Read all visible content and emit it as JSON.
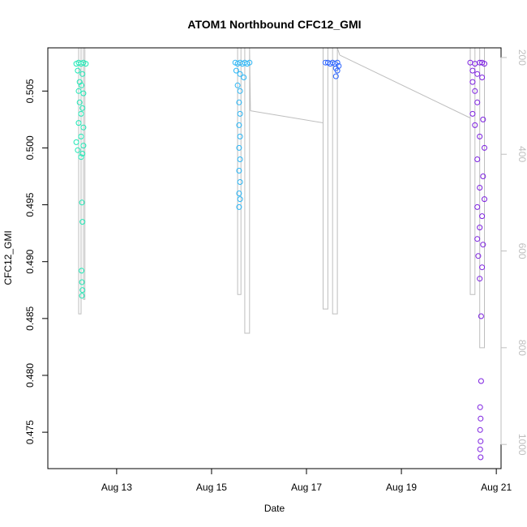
{
  "chart_data": {
    "type": "scatter",
    "title": "ATOM1 Northbound CFC12_GMI",
    "xlabel": "Date",
    "ylabel": "CFC12_GMI",
    "x_unit": "days in August",
    "xlim": [
      11.55,
      21.1
    ],
    "ylim": [
      0.4718,
      0.5088
    ],
    "y_ticks": [
      {
        "value": 0.475,
        "label": "0.475"
      },
      {
        "value": 0.48,
        "label": "0.480"
      },
      {
        "value": 0.485,
        "label": "0.485"
      },
      {
        "value": 0.49,
        "label": "0.490"
      },
      {
        "value": 0.495,
        "label": "0.495"
      },
      {
        "value": 0.5,
        "label": "0.500"
      },
      {
        "value": 0.505,
        "label": "0.505"
      }
    ],
    "x_ticks": [
      {
        "value": 13,
        "label": "Aug 13"
      },
      {
        "value": 15,
        "label": "Aug 15"
      },
      {
        "value": 17,
        "label": "Aug 17"
      },
      {
        "value": 19,
        "label": "Aug 19"
      },
      {
        "value": 21,
        "label": "Aug 21"
      }
    ],
    "right_axis": {
      "color": "#bebebe",
      "ylim": [
        1050,
        180
      ],
      "ticks": [
        {
          "value": 200,
          "label": "200"
        },
        {
          "value": 400,
          "label": "400"
        },
        {
          "value": 600,
          "label": "600"
        },
        {
          "value": 800,
          "label": "800"
        },
        {
          "value": 1000,
          "label": "1000"
        }
      ]
    },
    "pressure_profile": {
      "color": "#bebebe",
      "series": [
        {
          "x": [
            12.2,
            12.2,
            12.25,
            12.25,
            12.3,
            12.3,
            12.33,
            12.33
          ],
          "y": [
            180,
            730,
            730,
            180,
            180,
            700,
            700,
            180
          ]
        },
        {
          "x": [
            15.55,
            15.55,
            15.62,
            15.62,
            15.7,
            15.7,
            15.8,
            15.8,
            15.82
          ],
          "y": [
            180,
            690,
            690,
            180,
            180,
            770,
            770,
            180,
            310
          ]
        },
        {
          "x": [
            15.82,
            17.35
          ],
          "y": [
            310,
            335
          ]
        },
        {
          "x": [
            17.35,
            17.35,
            17.45,
            17.45,
            17.55,
            17.55,
            17.65,
            17.65,
            17.7
          ],
          "y": [
            180,
            720,
            720,
            180,
            180,
            730,
            730,
            180,
            195
          ]
        },
        {
          "x": [
            17.7,
            20.45
          ],
          "y": [
            195,
            325
          ]
        },
        {
          "x": [
            20.45,
            20.45,
            20.55,
            20.55,
            20.65,
            20.65,
            20.75,
            20.75
          ],
          "y": [
            180,
            690,
            690,
            180,
            180,
            800,
            800,
            180
          ]
        }
      ]
    },
    "series": [
      {
        "color": "#1de9b6",
        "points": [
          {
            "x": 12.15,
            "y": 0.5074
          },
          {
            "x": 12.2,
            "y": 0.5075
          },
          {
            "x": 12.25,
            "y": 0.5074
          },
          {
            "x": 12.3,
            "y": 0.5075
          },
          {
            "x": 12.35,
            "y": 0.5074
          },
          {
            "x": 12.18,
            "y": 0.5068
          },
          {
            "x": 12.28,
            "y": 0.5065
          },
          {
            "x": 12.22,
            "y": 0.5058
          },
          {
            "x": 12.26,
            "y": 0.5055
          },
          {
            "x": 12.2,
            "y": 0.505
          },
          {
            "x": 12.3,
            "y": 0.5048
          },
          {
            "x": 12.22,
            "y": 0.504
          },
          {
            "x": 12.28,
            "y": 0.5035
          },
          {
            "x": 12.25,
            "y": 0.503
          },
          {
            "x": 12.2,
            "y": 0.5022
          },
          {
            "x": 12.3,
            "y": 0.5018
          },
          {
            "x": 12.25,
            "y": 0.501
          },
          {
            "x": 12.15,
            "y": 0.5005
          },
          {
            "x": 12.3,
            "y": 0.5002
          },
          {
            "x": 12.18,
            "y": 0.4998
          },
          {
            "x": 12.28,
            "y": 0.4995
          },
          {
            "x": 12.25,
            "y": 0.4992
          },
          {
            "x": 12.27,
            "y": 0.4952
          },
          {
            "x": 12.28,
            "y": 0.4935
          },
          {
            "x": 12.26,
            "y": 0.4892
          },
          {
            "x": 12.27,
            "y": 0.4882
          },
          {
            "x": 12.28,
            "y": 0.4875
          },
          {
            "x": 12.27,
            "y": 0.487
          }
        ]
      },
      {
        "color": "#29b6f6",
        "points": [
          {
            "x": 15.5,
            "y": 0.5075
          },
          {
            "x": 15.55,
            "y": 0.5074
          },
          {
            "x": 15.6,
            "y": 0.5075
          },
          {
            "x": 15.65,
            "y": 0.5074
          },
          {
            "x": 15.7,
            "y": 0.5075
          },
          {
            "x": 15.75,
            "y": 0.5074
          },
          {
            "x": 15.8,
            "y": 0.5075
          },
          {
            "x": 15.52,
            "y": 0.5068
          },
          {
            "x": 15.6,
            "y": 0.5065
          },
          {
            "x": 15.68,
            "y": 0.5062
          },
          {
            "x": 15.55,
            "y": 0.5055
          },
          {
            "x": 15.6,
            "y": 0.505
          },
          {
            "x": 15.58,
            "y": 0.504
          },
          {
            "x": 15.6,
            "y": 0.503
          },
          {
            "x": 15.58,
            "y": 0.502
          },
          {
            "x": 15.6,
            "y": 0.501
          },
          {
            "x": 15.58,
            "y": 0.5
          },
          {
            "x": 15.6,
            "y": 0.499
          },
          {
            "x": 15.58,
            "y": 0.498
          },
          {
            "x": 15.6,
            "y": 0.497
          },
          {
            "x": 15.58,
            "y": 0.496
          },
          {
            "x": 15.6,
            "y": 0.4955
          },
          {
            "x": 15.58,
            "y": 0.4948
          }
        ]
      },
      {
        "color": "#2962ff",
        "points": [
          {
            "x": 17.4,
            "y": 0.5075
          },
          {
            "x": 17.45,
            "y": 0.5075
          },
          {
            "x": 17.5,
            "y": 0.5074
          },
          {
            "x": 17.55,
            "y": 0.5075
          },
          {
            "x": 17.6,
            "y": 0.5074
          },
          {
            "x": 17.65,
            "y": 0.5075
          },
          {
            "x": 17.68,
            "y": 0.5072
          },
          {
            "x": 17.62,
            "y": 0.507
          },
          {
            "x": 17.65,
            "y": 0.5068
          },
          {
            "x": 17.62,
            "y": 0.5063
          }
        ]
      },
      {
        "color": "#7c1fe0",
        "points": [
          {
            "x": 20.45,
            "y": 0.5075
          },
          {
            "x": 20.55,
            "y": 0.5074
          },
          {
            "x": 20.65,
            "y": 0.5075
          },
          {
            "x": 20.75,
            "y": 0.5074
          },
          {
            "x": 20.7,
            "y": 0.5075
          },
          {
            "x": 20.5,
            "y": 0.5068
          },
          {
            "x": 20.6,
            "y": 0.5065
          },
          {
            "x": 20.7,
            "y": 0.5062
          },
          {
            "x": 20.5,
            "y": 0.5058
          },
          {
            "x": 20.55,
            "y": 0.505
          },
          {
            "x": 20.6,
            "y": 0.504
          },
          {
            "x": 20.5,
            "y": 0.503
          },
          {
            "x": 20.72,
            "y": 0.5025
          },
          {
            "x": 20.55,
            "y": 0.502
          },
          {
            "x": 20.65,
            "y": 0.501
          },
          {
            "x": 20.75,
            "y": 0.5
          },
          {
            "x": 20.6,
            "y": 0.499
          },
          {
            "x": 20.72,
            "y": 0.4975
          },
          {
            "x": 20.65,
            "y": 0.4965
          },
          {
            "x": 20.75,
            "y": 0.4955
          },
          {
            "x": 20.6,
            "y": 0.4948
          },
          {
            "x": 20.7,
            "y": 0.494
          },
          {
            "x": 20.65,
            "y": 0.493
          },
          {
            "x": 20.6,
            "y": 0.492
          },
          {
            "x": 20.72,
            "y": 0.4915
          },
          {
            "x": 20.62,
            "y": 0.4905
          },
          {
            "x": 20.7,
            "y": 0.4895
          },
          {
            "x": 20.65,
            "y": 0.4885
          },
          {
            "x": 20.68,
            "y": 0.4852
          },
          {
            "x": 20.68,
            "y": 0.4795
          },
          {
            "x": 20.66,
            "y": 0.4772
          },
          {
            "x": 20.67,
            "y": 0.4762
          },
          {
            "x": 20.66,
            "y": 0.4752
          },
          {
            "x": 20.67,
            "y": 0.4742
          },
          {
            "x": 20.66,
            "y": 0.4735
          },
          {
            "x": 20.67,
            "y": 0.4728
          }
        ]
      }
    ]
  }
}
